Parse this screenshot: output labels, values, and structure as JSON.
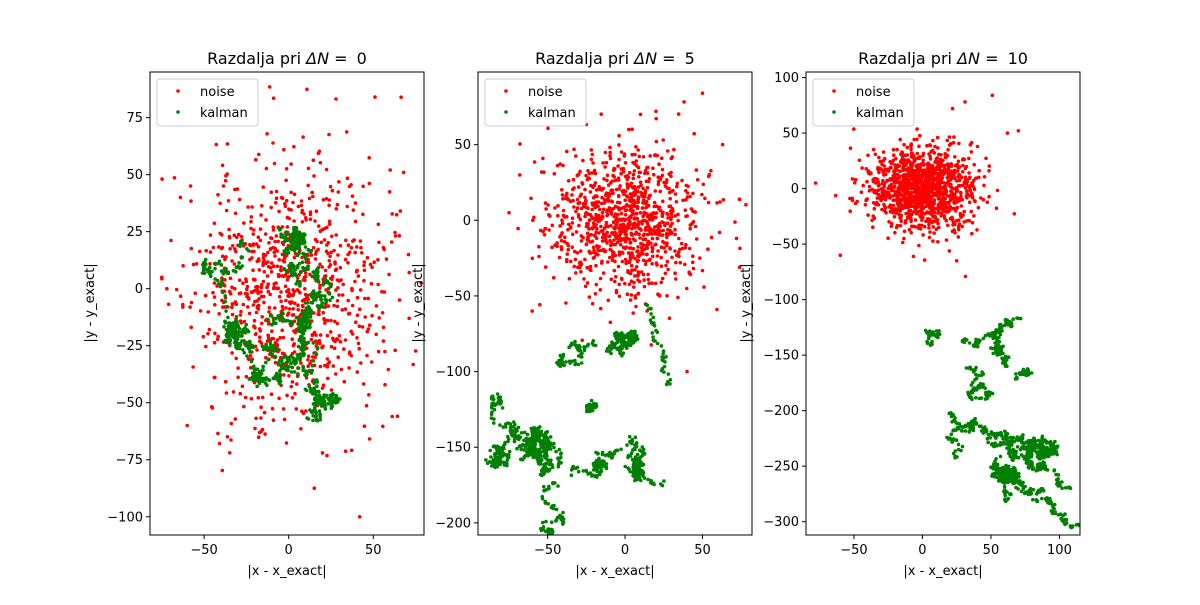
{
  "figure": {
    "colors": {
      "noise": "#ff0000",
      "kalman": "#008000"
    }
  },
  "chart_data": [
    {
      "type": "scatter",
      "title_prefix": "Razdalja pri ",
      "title_symbol": "ΔN = ",
      "title_value": "0",
      "xlabel": "|x - x_exact|",
      "ylabel": "|y - y_exact|",
      "xlim": [
        -82,
        80
      ],
      "ylim": [
        -108,
        95
      ],
      "xticks": [
        -50,
        0,
        50
      ],
      "yticks": [
        -100,
        -75,
        -50,
        -25,
        0,
        25,
        50,
        75
      ],
      "legend": [
        "noise",
        "kalman"
      ],
      "legend_position": "upper-left",
      "series": [
        {
          "name": "noise",
          "color": "#ff0000",
          "cloud": {
            "cx": 0,
            "cy": 0,
            "sx": 28,
            "sy": 28,
            "count": 900,
            "seed": 11
          },
          "points": [
            [
              51,
              84
            ],
            [
              42,
              -100
            ],
            [
              -75,
              5
            ],
            [
              68,
              51
            ],
            [
              60,
              52
            ],
            [
              -64,
              40
            ],
            [
              -58,
              45
            ],
            [
              63,
              -27
            ],
            [
              -72,
              0
            ],
            [
              -60,
              -60
            ],
            [
              20,
              -72
            ],
            [
              66,
              34
            ]
          ]
        },
        {
          "name": "kalman",
          "color": "#008000",
          "walks": [
            {
              "x0": -25,
              "y0": 15,
              "n": 220,
              "step": 2.2,
              "tx": -10,
              "ty": -10,
              "seed": 3
            },
            {
              "x0": 0,
              "y0": 12,
              "n": 260,
              "step": 2.2,
              "tx": 0,
              "ty": -10,
              "seed": 5
            },
            {
              "x0": -12,
              "y0": -15,
              "n": 220,
              "step": 2.2,
              "tx": 20,
              "ty": -35,
              "seed": 7
            },
            {
              "x0": 5,
              "y0": 0,
              "n": 160,
              "step": 2.0,
              "tx": 20,
              "ty": -5,
              "seed": 9
            }
          ]
        }
      ]
    },
    {
      "type": "scatter",
      "title_prefix": "Razdalja pri ",
      "title_symbol": "ΔN = ",
      "title_value": "5",
      "xlabel": "|x - x_exact|",
      "ylabel": "|y - y_exact|",
      "xlim": [
        -95,
        82
      ],
      "ylim": [
        -208,
        98
      ],
      "xticks": [
        -50,
        0,
        50
      ],
      "yticks": [
        -200,
        -150,
        -100,
        -50,
        0,
        50
      ],
      "legend": [
        "noise",
        "kalman"
      ],
      "legend_position": "upper-left",
      "series": [
        {
          "name": "noise",
          "color": "#ff0000",
          "cloud": {
            "cx": 0,
            "cy": 0,
            "sx": 24,
            "sy": 24,
            "count": 1000,
            "seed": 21
          },
          "points": [
            [
              50,
              84
            ],
            [
              -75,
              5
            ],
            [
              72,
              -12
            ],
            [
              -60,
              -60
            ],
            [
              40,
              -100
            ],
            [
              63,
              50
            ],
            [
              -68,
              30
            ],
            [
              10,
              70
            ],
            [
              20,
              72
            ]
          ]
        },
        {
          "name": "kalman",
          "color": "#008000",
          "walks": [
            {
              "x0": -80,
              "y0": -125,
              "n": 160,
              "step": 2.3,
              "tx": -60,
              "ty": -155,
              "seed": 31
            },
            {
              "x0": -90,
              "y0": -160,
              "n": 180,
              "step": 2.3,
              "tx": -50,
              "ty": -150,
              "seed": 33
            },
            {
              "x0": -55,
              "y0": -140,
              "n": 140,
              "step": 2.2,
              "tx": -45,
              "ty": -160,
              "seed": 35
            },
            {
              "x0": -45,
              "y0": -175,
              "n": 60,
              "step": 2.0,
              "tx": -40,
              "ty": -200,
              "seed": 37
            },
            {
              "x0": -40,
              "y0": -90,
              "n": 70,
              "step": 2.0,
              "tx": -30,
              "ty": -105,
              "seed": 39
            },
            {
              "x0": -20,
              "y0": -120,
              "n": 40,
              "step": 2.0,
              "tx": -5,
              "ty": -132,
              "seed": 41
            },
            {
              "x0": -35,
              "y0": -170,
              "n": 110,
              "step": 2.2,
              "tx": 0,
              "ty": -180,
              "seed": 43
            },
            {
              "x0": 0,
              "y0": -155,
              "n": 120,
              "step": 2.2,
              "tx": 25,
              "ty": -170,
              "seed": 45
            },
            {
              "x0": 5,
              "y0": -75,
              "n": 120,
              "step": 2.0,
              "tx": 20,
              "ty": -100,
              "seed": 47
            },
            {
              "x0": 15,
              "y0": -55,
              "n": 40,
              "step": 2.0,
              "tx": 25,
              "ty": -115,
              "seed": 49
            }
          ]
        }
      ]
    },
    {
      "type": "scatter",
      "title_prefix": "Razdalja pri ",
      "title_symbol": "ΔN = ",
      "title_value": "10",
      "xlabel": "|x - x_exact|",
      "ylabel": "|y - y_exact|",
      "xlim": [
        -85,
        115
      ],
      "ylim": [
        -312,
        105
      ],
      "xticks": [
        -50,
        0,
        50,
        100
      ],
      "yticks": [
        -300,
        -250,
        -200,
        -150,
        -100,
        -50,
        0,
        50,
        100
      ],
      "legend": [
        "noise",
        "kalman"
      ],
      "legend_position": "upper-left",
      "series": [
        {
          "name": "noise",
          "color": "#ff0000",
          "cloud": {
            "cx": 0,
            "cy": 0,
            "sx": 20,
            "sy": 18,
            "count": 1200,
            "seed": 61
          },
          "points": [
            [
              51,
              84
            ],
            [
              -78,
              5
            ],
            [
              70,
              52
            ],
            [
              22,
              72
            ],
            [
              25,
              -65
            ],
            [
              -60,
              -60
            ],
            [
              62,
              50
            ]
          ]
        },
        {
          "name": "kalman",
          "color": "#008000",
          "walks": [
            {
              "x0": 30,
              "y0": -135,
              "n": 80,
              "step": 2.2,
              "tx": 60,
              "ty": -110,
              "seed": 71
            },
            {
              "x0": 5,
              "y0": -140,
              "n": 40,
              "step": 2.0,
              "tx": 15,
              "ty": -130,
              "seed": 73
            },
            {
              "x0": 50,
              "y0": -130,
              "n": 60,
              "step": 2.0,
              "tx": 55,
              "ty": -155,
              "seed": 75
            },
            {
              "x0": 30,
              "y0": -160,
              "n": 70,
              "step": 2.2,
              "tx": 40,
              "ty": -180,
              "seed": 77
            },
            {
              "x0": 65,
              "y0": -170,
              "n": 40,
              "step": 2.0,
              "tx": 70,
              "ty": -185,
              "seed": 79
            },
            {
              "x0": 20,
              "y0": -200,
              "n": 40,
              "step": 2.0,
              "tx": 15,
              "ty": -225,
              "seed": 81
            },
            {
              "x0": 35,
              "y0": -215,
              "n": 220,
              "step": 2.4,
              "tx": 60,
              "ty": -250,
              "seed": 83
            },
            {
              "x0": 55,
              "y0": -225,
              "n": 240,
              "step": 2.4,
              "tx": 100,
              "ty": -235,
              "seed": 85
            },
            {
              "x0": 60,
              "y0": -240,
              "n": 180,
              "step": 2.3,
              "tx": 100,
              "ty": -260,
              "seed": 87
            },
            {
              "x0": 80,
              "y0": -280,
              "n": 90,
              "step": 2.2,
              "tx": 108,
              "ty": -297,
              "seed": 89
            },
            {
              "x0": 50,
              "y0": -250,
              "n": 50,
              "step": 2.0,
              "tx": 45,
              "ty": -275,
              "seed": 91
            }
          ]
        }
      ]
    }
  ]
}
